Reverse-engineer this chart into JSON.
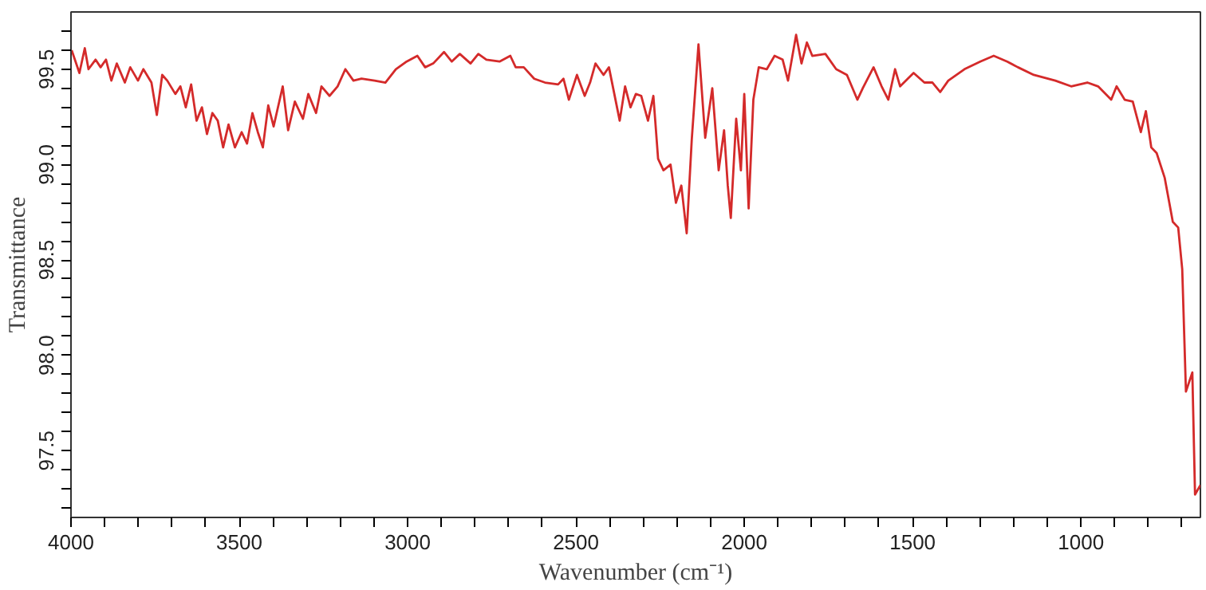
{
  "chart_data": {
    "type": "line",
    "xlabel": "Wavenumber (cm⁻¹)",
    "ylabel": "Transmittance",
    "xlim": [
      4000,
      645
    ],
    "ylim": [
      97.15,
      99.8
    ],
    "xticks": [
      4000,
      {
        "value": 3900,
        "label": null
      },
      {
        "value": 3800,
        "label": null
      },
      {
        "value": 3700,
        "label": null
      },
      {
        "value": 3600,
        "label": null
      },
      3500,
      {
        "value": 3400,
        "label": null
      },
      {
        "value": 3300,
        "label": null
      },
      {
        "value": 3200,
        "label": null
      },
      {
        "value": 3100,
        "label": null
      },
      3000,
      {
        "value": 2900,
        "label": null
      },
      {
        "value": 2800,
        "label": null
      },
      {
        "value": 2700,
        "label": null
      },
      {
        "value": 2600,
        "label": null
      },
      2500,
      {
        "value": 2400,
        "label": null
      },
      {
        "value": 2300,
        "label": null
      },
      {
        "value": 2200,
        "label": null
      },
      {
        "value": 2100,
        "label": null
      },
      2000,
      {
        "value": 1900,
        "label": null
      },
      {
        "value": 1800,
        "label": null
      },
      {
        "value": 1700,
        "label": null
      },
      {
        "value": 1600,
        "label": null
      },
      1500,
      {
        "value": 1400,
        "label": null
      },
      {
        "value": 1300,
        "label": null
      },
      {
        "value": 1200,
        "label": null
      },
      {
        "value": 1100,
        "label": null
      },
      1000,
      {
        "value": 900,
        "label": null
      },
      {
        "value": 800,
        "label": null
      },
      {
        "value": 700,
        "label": null
      }
    ],
    "yticks": [
      {
        "value": 97.2,
        "label": null
      },
      {
        "value": 97.3,
        "label": null
      },
      {
        "value": 97.4,
        "label": null
      },
      97.5,
      {
        "value": 97.6,
        "label": null
      },
      {
        "value": 97.7,
        "label": null
      },
      {
        "value": 97.8,
        "label": null
      },
      {
        "value": 97.9,
        "label": null
      },
      {
        "value": 98,
        "label": "98.0"
      },
      {
        "value": 98.1,
        "label": null
      },
      {
        "value": 98.2,
        "label": null
      },
      {
        "value": 98.3,
        "label": null
      },
      {
        "value": 98.4,
        "label": null
      },
      98.5,
      {
        "value": 98.6,
        "label": null
      },
      {
        "value": 98.7,
        "label": null
      },
      {
        "value": 98.8,
        "label": null
      },
      {
        "value": 98.9,
        "label": null
      },
      {
        "value": 99,
        "label": "99.0"
      },
      {
        "value": 99.1,
        "label": null
      },
      {
        "value": 99.2,
        "label": null
      },
      {
        "value": 99.3,
        "label": null
      },
      {
        "value": 99.4,
        "label": null
      },
      99.5,
      {
        "value": 99.6,
        "label": null
      },
      {
        "value": 99.7,
        "label": null
      }
    ],
    "grid": false,
    "marker": "none",
    "line_style": "solid",
    "series": [
      {
        "color": "#d42a2a",
        "x": [
          3998,
          3975,
          3959,
          3948,
          3927,
          3912,
          3896,
          3880,
          3864,
          3840,
          3824,
          3801,
          3785,
          3761,
          3745,
          3729,
          3714,
          3690,
          3675,
          3659,
          3643,
          3627,
          3611,
          3596,
          3580,
          3564,
          3548,
          3532,
          3513,
          3493,
          3477,
          3461,
          3445,
          3430,
          3414,
          3398,
          3371,
          3355,
          3335,
          3311,
          3295,
          3272,
          3256,
          3232,
          3208,
          3185,
          3161,
          3137,
          3098,
          3066,
          3035,
          3003,
          2971,
          2948,
          2924,
          2892,
          2869,
          2845,
          2813,
          2790,
          2766,
          2727,
          2695,
          2679,
          2655,
          2624,
          2592,
          2553,
          2537,
          2521,
          2497,
          2474,
          2458,
          2442,
          2418,
          2402,
          2370,
          2354,
          2338,
          2322,
          2306,
          2286,
          2270,
          2256,
          2240,
          2219,
          2203,
          2187,
          2171,
          2156,
          2136,
          2116,
          2095,
          2076,
          2060,
          2049,
          2040,
          2024,
          2010,
          2000,
          1987,
          1973,
          1957,
          1933,
          1910,
          1886,
          1870,
          1846,
          1830,
          1814,
          1798,
          1759,
          1727,
          1695,
          1664,
          1648,
          1616,
          1592,
          1572,
          1552,
          1537,
          1497,
          1465,
          1441,
          1418,
          1394,
          1346,
          1299,
          1259,
          1219,
          1187,
          1140,
          1076,
          1029,
          981,
          949,
          910,
          894,
          870,
          846,
          822,
          807,
          791,
          775,
          751,
          727,
          711,
          699,
          688,
          669,
          661,
          645
        ],
        "values": [
          99.6,
          99.48,
          99.61,
          99.5,
          99.55,
          99.51,
          99.55,
          99.44,
          99.53,
          99.43,
          99.51,
          99.44,
          99.5,
          99.43,
          99.26,
          99.47,
          99.44,
          99.37,
          99.41,
          99.3,
          99.42,
          99.23,
          99.3,
          99.16,
          99.27,
          99.23,
          99.09,
          99.21,
          99.09,
          99.17,
          99.11,
          99.27,
          99.17,
          99.09,
          99.31,
          99.2,
          99.41,
          99.18,
          99.33,
          99.24,
          99.37,
          99.27,
          99.41,
          99.36,
          99.41,
          99.5,
          99.44,
          99.45,
          99.44,
          99.43,
          99.5,
          99.54,
          99.57,
          99.51,
          99.53,
          99.59,
          99.54,
          99.58,
          99.53,
          99.58,
          99.55,
          99.54,
          99.57,
          99.51,
          99.51,
          99.45,
          99.43,
          99.42,
          99.45,
          99.34,
          99.47,
          99.36,
          99.43,
          99.53,
          99.47,
          99.51,
          99.23,
          99.41,
          99.3,
          99.37,
          99.36,
          99.23,
          99.36,
          99.03,
          98.97,
          99.0,
          98.8,
          98.89,
          98.64,
          99.13,
          99.63,
          99.14,
          99.4,
          98.97,
          99.18,
          98.89,
          98.72,
          99.24,
          98.97,
          99.37,
          98.77,
          99.34,
          99.51,
          99.5,
          99.57,
          99.55,
          99.44,
          99.68,
          99.53,
          99.64,
          99.57,
          99.58,
          99.5,
          99.47,
          99.34,
          99.4,
          99.51,
          99.41,
          99.34,
          99.5,
          99.41,
          99.48,
          99.43,
          99.43,
          99.38,
          99.44,
          99.5,
          99.54,
          99.57,
          99.54,
          99.51,
          99.47,
          99.44,
          99.41,
          99.43,
          99.41,
          99.34,
          99.41,
          99.34,
          99.33,
          99.17,
          99.28,
          99.09,
          99.06,
          98.93,
          98.7,
          98.67,
          98.45,
          97.81,
          97.91,
          97.27,
          97.32
        ]
      }
    ]
  }
}
